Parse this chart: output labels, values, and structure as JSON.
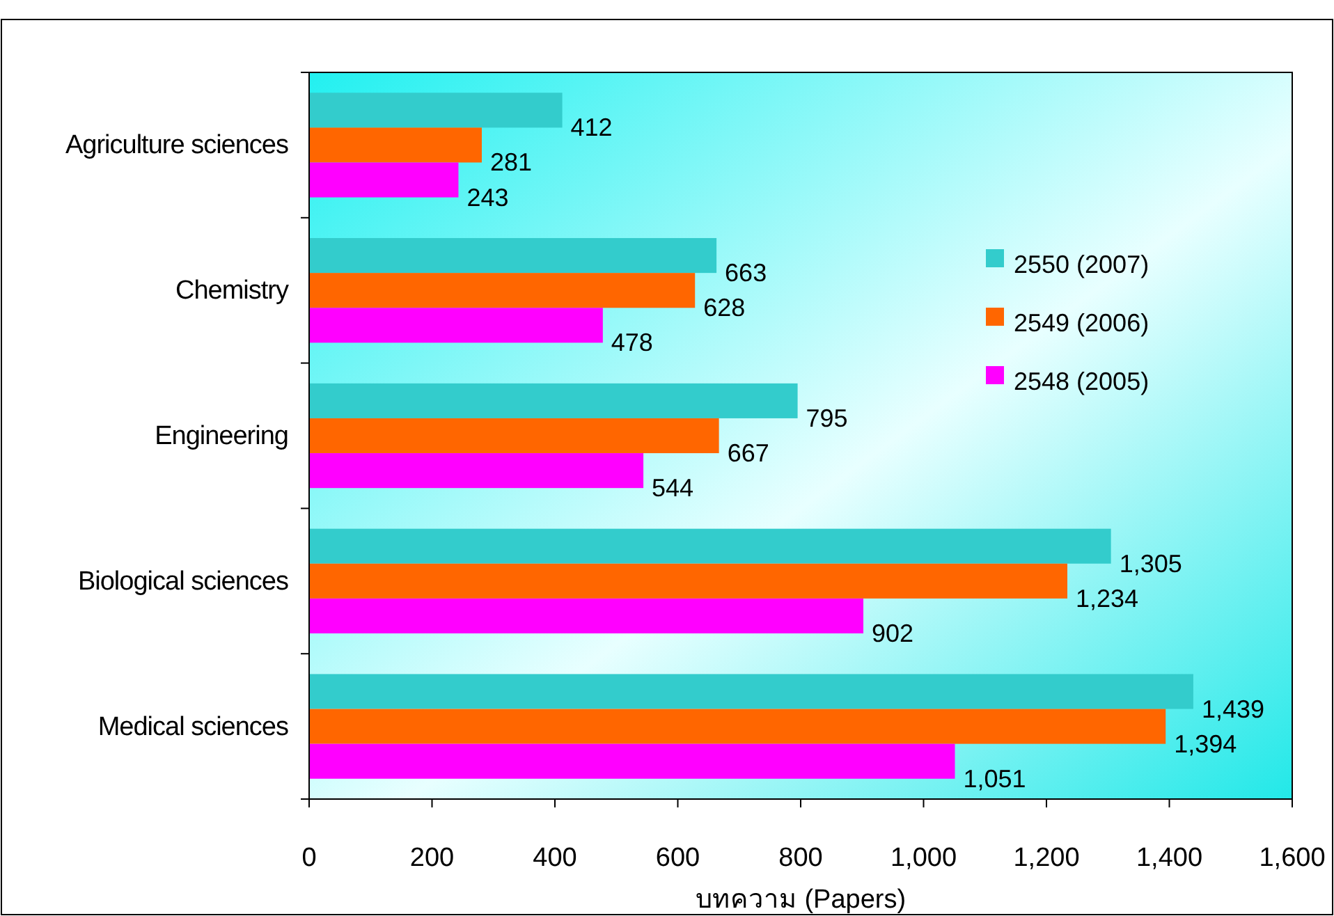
{
  "chart_data": {
    "type": "bar",
    "orientation": "horizontal",
    "xlabel": "บทความ (Papers)",
    "categories": [
      "Agriculture sciences",
      "Chemistry",
      "Engineering",
      "Biological sciences",
      "Medical sciences"
    ],
    "series": [
      {
        "name": "2550 (2007)",
        "color": "#33cccc",
        "values": [
          412,
          663,
          795,
          1305,
          1439
        ],
        "value_labels": [
          "412",
          "663",
          "795",
          "1,305",
          "1,439"
        ]
      },
      {
        "name": "2549 (2006)",
        "color": "#ff6600",
        "values": [
          281,
          628,
          667,
          1234,
          1394
        ],
        "value_labels": [
          "281",
          "628",
          "667",
          "1,234",
          "1,394"
        ]
      },
      {
        "name": "2548 (2005)",
        "color": "#ff00ff",
        "values": [
          243,
          478,
          544,
          902,
          1051
        ],
        "value_labels": [
          "243",
          "478",
          "544",
          "902",
          "1,051"
        ]
      }
    ],
    "xlim": [
      0,
      1600
    ],
    "xticks": [
      0,
      200,
      400,
      600,
      800,
      {
        "value": 1000,
        "label": "1,000"
      },
      {
        "value": 1200,
        "label": "1,200"
      },
      {
        "value": 1400,
        "label": "1,400"
      },
      {
        "value": 1600,
        "label": "1,600"
      }
    ],
    "legend": "right",
    "grid": false
  }
}
